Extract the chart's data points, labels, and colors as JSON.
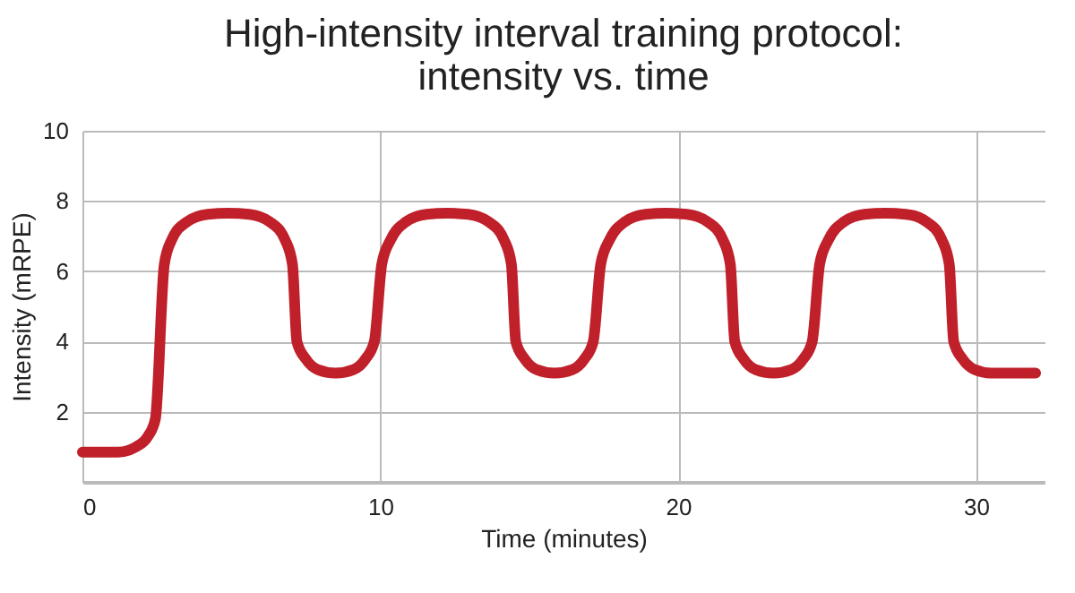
{
  "chart_data": {
    "type": "line",
    "title": "High-intensity interval training protocol:\nintensity vs. time",
    "xlabel": "Time (minutes)",
    "ylabel": "Intensity (mRPE)",
    "xlim": [
      0,
      32.3
    ],
    "xticks": [
      0,
      10,
      20,
      30
    ],
    "ylim": [
      0,
      10
    ],
    "yticks": [
      2,
      4,
      6,
      8,
      10
    ],
    "grid": true,
    "marker": "none",
    "line_style": "solid",
    "x": [
      0,
      1.2,
      1.8,
      2.2,
      2.45,
      2.75,
      3.0,
      3.5,
      4.2,
      4.9,
      5.6,
      6.3,
      6.8,
      7.05,
      7.2,
      7.5,
      7.9,
      8.5,
      9.1,
      9.5,
      9.8,
      10.05,
      10.35,
      10.85,
      11.55,
      12.25,
      12.95,
      13.65,
      14.15,
      14.4,
      14.55,
      14.85,
      15.25,
      15.85,
      16.45,
      16.85,
      17.15,
      17.4,
      17.7,
      18.2,
      18.9,
      19.6,
      20.3,
      21.0,
      21.5,
      21.75,
      21.9,
      22.2,
      22.6,
      23.2,
      23.8,
      24.2,
      24.5,
      24.75,
      25.05,
      25.55,
      26.25,
      26.95,
      27.65,
      28.35,
      28.85,
      29.1,
      29.25,
      29.55,
      29.95,
      30.5,
      32.0
    ],
    "series": [
      {
        "color": "#c0202a",
        "values": [
          0.85,
          0.85,
          1.0,
          1.3,
          1.8,
          6.2,
          6.9,
          7.4,
          7.62,
          7.65,
          7.62,
          7.4,
          6.9,
          6.2,
          4.0,
          3.5,
          3.2,
          3.1,
          3.2,
          3.5,
          4.0,
          6.2,
          6.9,
          7.4,
          7.62,
          7.65,
          7.62,
          7.4,
          6.9,
          6.2,
          4.0,
          3.5,
          3.2,
          3.1,
          3.2,
          3.5,
          4.0,
          6.2,
          6.9,
          7.4,
          7.62,
          7.65,
          7.62,
          7.4,
          6.9,
          6.2,
          4.0,
          3.5,
          3.2,
          3.1,
          3.2,
          3.5,
          4.0,
          6.2,
          6.9,
          7.4,
          7.62,
          7.65,
          7.62,
          7.4,
          6.9,
          6.2,
          4.0,
          3.5,
          3.2,
          3.1,
          3.1
        ]
      }
    ]
  }
}
